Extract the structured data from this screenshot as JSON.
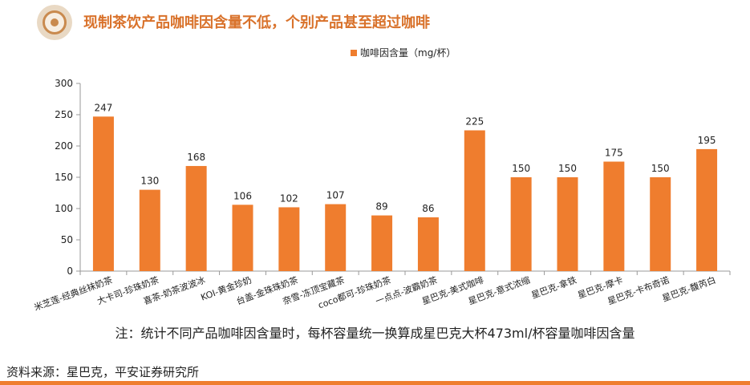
{
  "header": {
    "title": "现制茶饮产品咖啡因含量不低，个别产品甚至超过咖啡",
    "logo_icon": "circle-logo-icon"
  },
  "note": "注：统计不同产品咖啡因含量时，每杯容量统一换算成星巴克大杯473ml/杯容量咖啡因含量",
  "source": "资料来源：星巴克，平安证券研究所",
  "colors": {
    "accent": "#ef7d2e",
    "title": "#d9722b",
    "axis": "#999999"
  },
  "chart_data": {
    "type": "bar",
    "categories": [
      "米芝莲-经典丝袜奶茶",
      "大卡司-珍珠奶茶",
      "喜茶-奶茶波波冰",
      "KOI-黄金珍奶",
      "台盖-金珠珠奶茶",
      "奈雪-冻顶宝藏茶",
      "coco都可-珍珠奶茶",
      "一点点-波霸奶茶",
      "星巴克-美式咖啡",
      "星巴克-意式浓缩",
      "星巴克-拿铁",
      "星巴克-摩卡",
      "星巴克-卡布奇诺",
      "星巴克-馥芮白"
    ],
    "series": [
      {
        "name": "咖啡因含量（mg/杯）",
        "values": [
          247,
          130,
          168,
          106,
          102,
          107,
          89,
          86,
          225,
          150,
          150,
          175,
          150,
          195
        ]
      }
    ],
    "yticks": [
      "0",
      "50",
      "100",
      "150",
      "200",
      "250",
      "300"
    ],
    "ylim": [
      0,
      300
    ],
    "legend_position": "top-center",
    "grid": false
  }
}
